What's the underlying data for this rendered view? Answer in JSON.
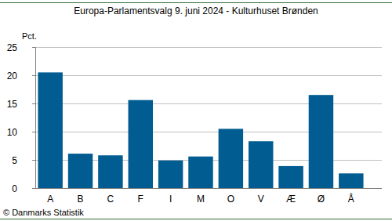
{
  "chart_data": {
    "type": "bar",
    "title": "Europa-Parlamentsvalg 9. juni 2024 - Kulturhuset Brønden",
    "y_label": "Pct.",
    "note": "© Danmarks Statistik",
    "categories": [
      "A",
      "B",
      "C",
      "F",
      "I",
      "M",
      "O",
      "V",
      "Æ",
      "Ø",
      "Å"
    ],
    "values": [
      20.5,
      6.1,
      5.8,
      15.6,
      4.9,
      5.6,
      10.5,
      8.3,
      3.9,
      16.5,
      2.6
    ],
    "color": "#005c91",
    "ylim": [
      0,
      25
    ],
    "yticks": [
      0,
      5,
      10,
      15,
      20,
      25
    ],
    "grid": true
  }
}
